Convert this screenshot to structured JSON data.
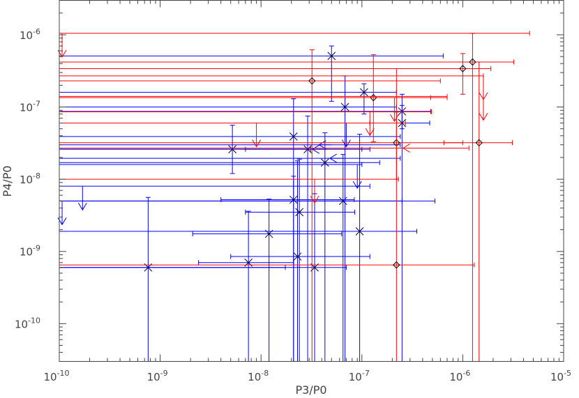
{
  "chart_data": {
    "type": "scatter",
    "title": "",
    "xlabel": "P3/P0",
    "ylabel": "P4/P0",
    "xscale": "log",
    "yscale": "log",
    "xlim": [
      1e-10,
      1e-05
    ],
    "ylim": [
      3e-11,
      3e-06
    ],
    "grid": false,
    "x_ticks": [
      {
        "value": 1e-10,
        "base": "10",
        "exp": "-10"
      },
      {
        "value": 1e-09,
        "base": "10",
        "exp": "-9"
      },
      {
        "value": 1e-08,
        "base": "10",
        "exp": "-8"
      },
      {
        "value": 1e-07,
        "base": "10",
        "exp": "-7"
      },
      {
        "value": 1e-06,
        "base": "10",
        "exp": "-6"
      },
      {
        "value": 1e-05,
        "base": "10",
        "exp": "-5"
      }
    ],
    "y_ticks": [
      {
        "value": 1e-10,
        "base": "10",
        "exp": "-10"
      },
      {
        "value": 1e-09,
        "base": "10",
        "exp": "-9"
      },
      {
        "value": 1e-08,
        "base": "10",
        "exp": "-8"
      },
      {
        "value": 1e-07,
        "base": "10",
        "exp": "-7"
      },
      {
        "value": 1e-06,
        "base": "10",
        "exp": "-6"
      }
    ],
    "series": [
      {
        "color": "#0000ff",
        "marker": "x",
        "points": [
          {
            "x": 7.6e-10,
            "y": 6e-10,
            "xerr": [
              1e-10,
              1.74e-08
            ],
            "yerr": [
              3e-11,
              5.6e-09
            ]
          },
          {
            "x": 5.2e-09,
            "y": 2.6e-08,
            "xerr": [
              1e-10,
              3.1e-08
            ],
            "yerr": [
              1.2e-08,
              5.6e-08
            ]
          },
          {
            "x": 7.5e-09,
            "y": 7e-10,
            "xerr": [
              2.4e-09,
              2.1e-08
            ],
            "yerr": [
              3e-11,
              3.6e-09
            ]
          },
          {
            "x": 1.2e-08,
            "y": 1.75e-09,
            "xerr": [
              2.1e-09,
              6.3e-08
            ],
            "yerr": [
              3e-11,
              5.3e-09
            ]
          },
          {
            "x": 2.1e-08,
            "y": 3.9e-08,
            "xerr": [
              1e-10,
              2.4e-07
            ],
            "yerr": [
              3e-11,
              1.3e-07
            ]
          },
          {
            "x": 2.1e-08,
            "y": 5.2e-09,
            "xerr": [
              4e-09,
              8.4e-08
            ],
            "yerr": [
              3e-11,
              1.1e-08
            ]
          },
          {
            "x": 2.3e-08,
            "y": 8.5e-10,
            "xerr": [
              5e-09,
              1.2e-07
            ],
            "yerr": [
              3e-11,
              1.8e-08
            ]
          },
          {
            "x": 2.4e-08,
            "y": 3.5e-09,
            "xerr": [
              7e-09,
              8.5e-08
            ],
            "yerr": [
              3e-11,
              1.9e-08
            ]
          },
          {
            "x": 2.9e-08,
            "y": 2.6e-08,
            "xerr": [
              7e-09,
              1.2e-07
            ],
            "yerr": [
              3e-11,
              7.5e-08
            ]
          },
          {
            "x": 3.4e-08,
            "y": 6e-10,
            "xerr": [
              1e-10,
              7e-08
            ],
            "yerr": [
              3e-11,
              6.3e-09
            ]
          },
          {
            "x": 4.3e-08,
            "y": 1.7e-08,
            "xerr": [
              1e-10,
              1.5e-07
            ],
            "yerr": [
              3e-11,
              4.4e-08
            ]
          },
          {
            "x": 5e-08,
            "y": 5.1e-07,
            "xerr": [
              1e-10,
              6.4e-07
            ],
            "yerr": [
              1.2e-07,
              7e-07
            ]
          },
          {
            "x": 6.5e-08,
            "y": 5e-09,
            "xerr": [
              1e-10,
              2.5e-07
            ],
            "yerr": [
              3e-11,
              2.2e-08
            ]
          },
          {
            "x": 6.8e-08,
            "y": 1e-07,
            "xerr": [
              1e-10,
              2.2e-07
            ],
            "yerr": [
              3e-11,
              2.7e-07
            ]
          },
          {
            "x": 9.5e-08,
            "y": 1.9e-09,
            "xerr": [
              1e-10,
              3.5e-07
            ],
            "yerr": [
              3e-11,
              4.2e-08
            ]
          },
          {
            "x": 1.05e-07,
            "y": 1.6e-07,
            "xerr": [
              1e-10,
              2.2e-07
            ],
            "yerr": [
              8e-08,
              2.1e-07
            ]
          },
          {
            "x": 2.5e-07,
            "y": 8.7e-08,
            "xerr": [
              1e-10,
              4.8e-07
            ],
            "yerr": [
              5e-08,
              1.5e-07
            ]
          },
          {
            "x": 2.5e-07,
            "y": 6e-08,
            "xerr": [
              1e-10,
              4.7e-07
            ],
            "yerr": [
              3e-11,
              1.05e-07
            ]
          }
        ],
        "limits": [
          {
            "x": 1.7e-10,
            "y": 8e-09,
            "dir": "down",
            "xerr": [
              1e-10,
              1.2e-07
            ]
          },
          {
            "x": 1e-10,
            "y": 5e-09,
            "dir": "down",
            "xerr": [
              1e-10,
              5.3e-07
            ]
          },
          {
            "x": 4.3e-08,
            "y": 2.6e-08,
            "dir": "left",
            "xerr": [
              1e-10,
              1e-07
            ]
          },
          {
            "x": 5e-08,
            "y": 3e-08,
            "dir": "left",
            "xerr": [
              1e-10,
              2.4e-07
            ]
          },
          {
            "x": 6.4e-08,
            "y": 1.95e-08,
            "dir": "left",
            "xerr": [
              1e-10,
              2.4e-07
            ]
          },
          {
            "x": 9e-08,
            "y": 1.6e-08,
            "dir": "down",
            "xerr": [
              1e-10,
              1e-07
            ]
          },
          {
            "x": 7e-08,
            "y": 6e-08,
            "dir": "down",
            "xerr": [
              1e-10,
              1.2e-07
            ]
          }
        ]
      },
      {
        "color": "#ff0000",
        "marker": "diamond",
        "points": [
          {
            "x": 3.2e-08,
            "y": 2.3e-07,
            "xerr": [
              1e-10,
              6e-07
            ],
            "yerr": [
              3e-11,
              6.2e-07
            ]
          },
          {
            "x": 1.3e-07,
            "y": 1.35e-07,
            "xerr": [
              1e-10,
              4.8e-07
            ],
            "yerr": [
              3.3e-08,
              5.3e-07
            ]
          },
          {
            "x": 2.2e-07,
            "y": 3.2e-08,
            "xerr": [
              1e-10,
              1e-06
            ],
            "yerr": [
              1e-08,
              8.5e-08
            ]
          },
          {
            "x": 2.2e-07,
            "y": 6.5e-10,
            "xerr": [
              1e-10,
              1.3e-06
            ],
            "yerr": [
              3e-11,
              3.4e-07
            ]
          },
          {
            "x": 1e-06,
            "y": 3.4e-07,
            "xerr": [
              1e-10,
              1.9e-06
            ],
            "yerr": [
              1.5e-07,
              5.5e-07
            ]
          },
          {
            "x": 1.25e-06,
            "y": 4.2e-07,
            "xerr": [
              1e-10,
              3.2e-06
            ],
            "yerr": [
              3e-11,
              1.05e-06
            ]
          },
          {
            "x": 1.45e-06,
            "y": 3.2e-08,
            "xerr": [
              6.5e-07,
              3.1e-06
            ],
            "yerr": [
              3e-11,
              4.2e-07
            ]
          }
        ],
        "limits": [
          {
            "x": 1e-10,
            "y": 1.05e-06,
            "dir": "down",
            "xerr": [
              1e-10,
              4.6e-06
            ]
          },
          {
            "x": 1.6e-06,
            "y": 2.7e-07,
            "dir": "down",
            "xerr": [
              1e-10,
              1.6e-06
            ]
          },
          {
            "x": 1.6e-06,
            "y": 1.4e-07,
            "dir": "down",
            "xerr": [
              1e-10,
              7e-07
            ]
          },
          {
            "x": 9e-09,
            "y": 6e-08,
            "dir": "down",
            "xerr": [
              1e-10,
              2.7e-07
            ]
          },
          {
            "x": 3.4e-08,
            "y": 1e-08,
            "dir": "down",
            "xerr": [
              1e-10,
              2.3e-07
            ]
          },
          {
            "x": 3.4e-07,
            "y": 2.7e-08,
            "dir": "left",
            "xerr": [
              1e-10,
              1.15e-06
            ]
          },
          {
            "x": 1.2e-07,
            "y": 8.6e-08,
            "dir": "down",
            "xerr": [
              1e-10,
              4.9e-07
            ]
          },
          {
            "x": 2.1e-07,
            "y": 1.35e-07,
            "dir": "down",
            "xerr": [
              1e-10,
              7e-07
            ]
          }
        ]
      }
    ]
  }
}
